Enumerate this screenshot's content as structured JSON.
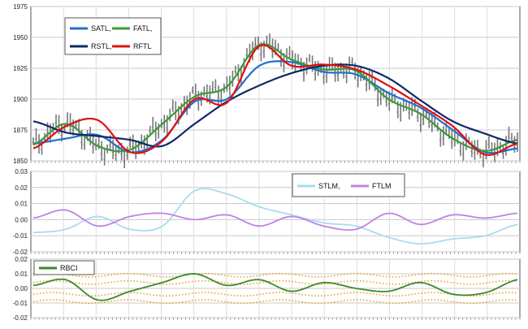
{
  "chart_data": [
    {
      "type": "line",
      "ylim": [
        1850,
        1975
      ],
      "yticks": [
        1850,
        1875,
        1900,
        1925,
        1950,
        1975
      ],
      "grid": true,
      "legend_placement": "top-left",
      "legend": [
        "SATL,",
        "FATL,",
        "RSTL,",
        "RFTL"
      ],
      "x": [
        0,
        40,
        80,
        120,
        160,
        200,
        240,
        280,
        320,
        360,
        400,
        440,
        480,
        520,
        560,
        600
      ],
      "series": [
        {
          "name": "SATL",
          "color": "#1f6fd0",
          "values": [
            1864,
            1868,
            1871,
            1857,
            1867,
            1898,
            1900,
            1927,
            1930,
            1922,
            1920,
            1905,
            1893,
            1875,
            1857,
            1860
          ]
        },
        {
          "name": "FATL",
          "color": "#3a9a3a",
          "values": [
            1863,
            1880,
            1862,
            1859,
            1880,
            1902,
            1910,
            1944,
            1932,
            1924,
            1923,
            1900,
            1888,
            1868,
            1858,
            1867
          ]
        },
        {
          "name": "RSTL",
          "color": "#0d2a66",
          "values": [
            1882,
            1873,
            1870,
            1867,
            1862,
            1880,
            1898,
            1911,
            1921,
            1927,
            1927,
            1917,
            1899,
            1882,
            1872,
            1864
          ]
        },
        {
          "name": "RFTL",
          "color": "#e01010",
          "values": [
            1860,
            1878,
            1883,
            1857,
            1866,
            1900,
            1897,
            1943,
            1927,
            1928,
            1924,
            1911,
            1895,
            1878,
            1855,
            1864
          ]
        }
      ],
      "price_bars": "gray OHLC bars following price"
    },
    {
      "type": "line",
      "ylim": [
        -0.02,
        0.03
      ],
      "yticks": [
        -0.02,
        -0.01,
        0.0,
        0.01,
        0.02,
        0.03
      ],
      "ytick_labels": [
        "-0.02",
        "-0.01",
        "0.00",
        "0.01",
        "0.02",
        "0.03"
      ],
      "grid": true,
      "legend_placement": "top-right",
      "legend": [
        "STLM,",
        "FTLM"
      ],
      "x": [
        0,
        40,
        80,
        120,
        160,
        200,
        240,
        280,
        320,
        360,
        400,
        440,
        480,
        520,
        560,
        600
      ],
      "series": [
        {
          "name": "STLM",
          "color": "#a8dcf0",
          "values": [
            -0.008,
            -0.006,
            0.002,
            -0.006,
            -0.004,
            0.018,
            0.016,
            0.008,
            0.003,
            -0.002,
            -0.004,
            -0.011,
            -0.015,
            -0.012,
            -0.01,
            -0.003
          ]
        },
        {
          "name": "FTLM",
          "color": "#c080e8",
          "values": [
            0.001,
            0.006,
            -0.004,
            0.002,
            0.004,
            0.0,
            0.003,
            -0.004,
            0.002,
            -0.004,
            -0.006,
            0.004,
            -0.003,
            0.003,
            0.001,
            0.004
          ]
        }
      ]
    },
    {
      "type": "line",
      "ylim": [
        -0.02,
        0.02
      ],
      "yticks": [
        -0.02,
        -0.01,
        0.0,
        0.01,
        0.02
      ],
      "ytick_labels": [
        "-0.02",
        "-0.01",
        "0.00",
        "0.01",
        "0.02"
      ],
      "grid": true,
      "legend_placement": "top-left",
      "legend": [
        "RBCI"
      ],
      "x": [
        0,
        40,
        80,
        120,
        160,
        200,
        240,
        280,
        320,
        360,
        400,
        440,
        480,
        520,
        560,
        600
      ],
      "series": [
        {
          "name": "RBCI",
          "color": "#3a8a2a",
          "values": [
            0.002,
            0.006,
            -0.008,
            -0.002,
            0.004,
            0.01,
            0.002,
            0.006,
            -0.002,
            0.004,
            0.0,
            -0.002,
            0.004,
            -0.004,
            -0.003,
            0.006
          ]
        }
      ],
      "bands": {
        "color": "#e8a020",
        "values": [
          0.009,
          0.004,
          -0.004,
          -0.009
        ]
      }
    }
  ]
}
